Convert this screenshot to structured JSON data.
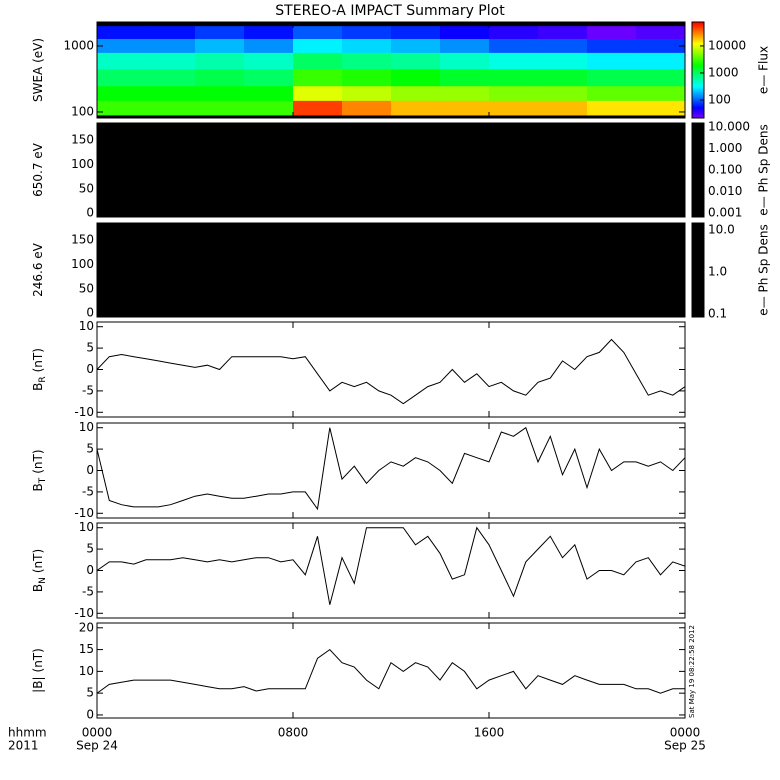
{
  "title": "STEREO-A IMPACT Summary Plot",
  "timestamp": "Sat May 19 08:22:58 2012",
  "x_axis_label": "hhmm",
  "x_axis_year": "2011",
  "chart_data": [
    {
      "type": "heatmap",
      "ylabel": "SWEA (eV)",
      "log_y": true,
      "ylim": [
        81,
        2310
      ],
      "yticks": [
        100,
        1000
      ],
      "xlim": [
        0,
        24
      ],
      "colormap": "rainbow",
      "clim": [
        21.5,
        77000
      ],
      "cticks": [
        100,
        1000,
        10000
      ],
      "clabel": "e— Flux",
      "x_edges": [
        0,
        2,
        4,
        6,
        8,
        10,
        12,
        14,
        16,
        18,
        20,
        22,
        24
      ],
      "y_edges": [
        90,
        150,
        250,
        450,
        800,
        1300,
        2000
      ],
      "values": [
        [
          3000,
          3000,
          3000,
          3000,
          50000,
          30000,
          20000,
          20000,
          20000,
          20000,
          15000,
          15000
        ],
        [
          2000,
          2000,
          2000,
          2000,
          10000,
          8000,
          6000,
          6000,
          5000,
          5000,
          4000,
          4000
        ],
        [
          1000,
          1000,
          1200,
          1000,
          3000,
          2500,
          2000,
          1500,
          1500,
          1500,
          1200,
          1200
        ],
        [
          500,
          500,
          600,
          500,
          1000,
          800,
          700,
          500,
          400,
          400,
          300,
          300
        ],
        [
          150,
          150,
          200,
          150,
          300,
          250,
          200,
          150,
          100,
          100,
          80,
          80
        ],
        [
          60,
          60,
          80,
          60,
          100,
          80,
          70,
          50,
          40,
          35,
          25,
          30
        ]
      ]
    },
    {
      "type": "heatmap",
      "ylabel": "650.7 eV",
      "ylim": [
        -8,
        185
      ],
      "yticks": [
        0,
        50,
        100,
        150
      ],
      "xlim": [
        0,
        24
      ],
      "clim": [
        0.00065,
        15.3
      ],
      "cticks": [
        {
          "value": 10,
          "label": "10.000"
        },
        {
          "value": 1,
          "label": "1.000"
        },
        {
          "value": 0.1,
          "label": "0.100"
        },
        {
          "value": 0.01,
          "label": "0.010"
        },
        {
          "value": 0.001,
          "label": "0.001"
        }
      ],
      "clabel": "e— Ph Sp Dens"
    },
    {
      "type": "heatmap",
      "ylabel": "246.6 eV",
      "ylim": [
        -8,
        185
      ],
      "yticks": [
        0,
        50,
        100,
        150
      ],
      "xlim": [
        0,
        24
      ],
      "clim": [
        0.085,
        14.7
      ],
      "cticks": [
        {
          "value": 10,
          "label": "10.0"
        },
        {
          "value": 1,
          "label": "1.0"
        },
        {
          "value": 0.1,
          "label": "0.1"
        }
      ],
      "clabel": "e— Ph Sp Dens"
    },
    {
      "type": "line",
      "ylabel": "B",
      "ylabel_sub": "R",
      "ylabel_unit": "(nT)",
      "ylim": [
        -11.1,
        11.1
      ],
      "yticks": [
        -10,
        -5,
        0,
        5,
        10
      ],
      "xlim": [
        0,
        24
      ],
      "color": "#000000",
      "x": [
        0,
        0.5,
        1,
        1.5,
        2,
        2.5,
        3,
        3.5,
        4,
        4.5,
        5,
        5.5,
        6,
        6.5,
        7,
        7.5,
        8,
        8.5,
        9,
        9.5,
        10,
        10.5,
        11,
        11.5,
        12,
        12.5,
        13,
        13.5,
        14,
        14.5,
        15,
        15.5,
        16,
        16.5,
        17,
        17.5,
        18,
        18.5,
        19,
        19.5,
        20,
        20.5,
        21,
        21.5,
        22,
        22.5,
        23,
        23.5,
        24
      ],
      "values": [
        0,
        3,
        3.5,
        3,
        2.5,
        2,
        1.5,
        1,
        0.5,
        1,
        0,
        3,
        3,
        3,
        3,
        3,
        2.5,
        3,
        -1,
        -5,
        -3,
        -4,
        -3,
        -5,
        -6,
        -8,
        -6,
        -4,
        -3,
        0,
        -3,
        -1,
        -4,
        -3,
        -5,
        -6,
        -3,
        -2,
        2,
        0,
        3,
        4,
        7,
        4,
        -1,
        -6,
        -5,
        -6,
        -4
      ]
    },
    {
      "type": "line",
      "ylabel": "B",
      "ylabel_sub": "T",
      "ylabel_unit": "(nT)",
      "ylim": [
        -11.1,
        11.1
      ],
      "yticks": [
        -10,
        -5,
        0,
        5,
        10
      ],
      "xlim": [
        0,
        24
      ],
      "color": "#000000",
      "x": [
        0,
        0.5,
        1,
        1.5,
        2,
        2.5,
        3,
        3.5,
        4,
        4.5,
        5,
        5.5,
        6,
        6.5,
        7,
        7.5,
        8,
        8.5,
        9,
        9.5,
        10,
        10.5,
        11,
        11.5,
        12,
        12.5,
        13,
        13.5,
        14,
        14.5,
        15,
        15.5,
        16,
        16.5,
        17,
        17.5,
        18,
        18.5,
        19,
        19.5,
        20,
        20.5,
        21,
        21.5,
        22,
        22.5,
        23,
        23.5,
        24
      ],
      "values": [
        5,
        -7,
        -8,
        -8.5,
        -8.5,
        -8.5,
        -8,
        -7,
        -6,
        -5.5,
        -6,
        -6.5,
        -6.5,
        -6,
        -5.5,
        -5.5,
        -5,
        -5,
        -9,
        10,
        -2,
        1,
        -3,
        0,
        2,
        1,
        3,
        2,
        0,
        -3,
        4,
        3,
        2,
        9,
        8,
        10,
        2,
        8,
        -1,
        5,
        -4,
        5,
        0,
        2,
        2,
        1,
        2,
        0,
        3
      ]
    },
    {
      "type": "line",
      "ylabel": "B",
      "ylabel_sub": "N",
      "ylabel_unit": "(nT)",
      "ylim": [
        -11.1,
        11.1
      ],
      "yticks": [
        -10,
        -5,
        0,
        5,
        10
      ],
      "xlim": [
        0,
        24
      ],
      "color": "#000000",
      "x": [
        0,
        0.5,
        1,
        1.5,
        2,
        2.5,
        3,
        3.5,
        4,
        4.5,
        5,
        5.5,
        6,
        6.5,
        7,
        7.5,
        8,
        8.5,
        9,
        9.5,
        10,
        10.5,
        11,
        11.5,
        12,
        12.5,
        13,
        13.5,
        14,
        14.5,
        15,
        15.5,
        16,
        16.5,
        17,
        17.5,
        18,
        18.5,
        19,
        19.5,
        20,
        20.5,
        21,
        21.5,
        22,
        22.5,
        23,
        23.5,
        24
      ],
      "values": [
        0,
        2,
        2,
        1.5,
        2.5,
        2.5,
        2.5,
        3,
        2.5,
        2,
        2.5,
        2,
        2.5,
        3,
        3,
        2,
        2.5,
        -1,
        8,
        -8,
        3,
        -3,
        10,
        10,
        10,
        10,
        6,
        8,
        4,
        -2,
        -1,
        10,
        6,
        0,
        -6,
        2,
        5,
        8,
        3,
        6,
        -2,
        0,
        0,
        -1,
        2,
        3,
        -1,
        2,
        1
      ]
    },
    {
      "type": "line",
      "ylabel": "|B|",
      "ylabel_unit": "(nT)",
      "ylim": [
        -0.7,
        21.1
      ],
      "yticks": [
        0,
        5,
        10,
        15,
        20
      ],
      "xlim": [
        0,
        24
      ],
      "color": "#000000",
      "xticks": [
        {
          "value": 0,
          "label": "0000"
        },
        {
          "value": 8,
          "label": "0800"
        },
        {
          "value": 16,
          "label": "1600"
        },
        {
          "value": 24,
          "label": "0000"
        }
      ],
      "xdates": [
        {
          "value": 0,
          "label": "Sep 24"
        },
        {
          "value": 24,
          "label": "Sep 25"
        }
      ],
      "x": [
        0,
        0.5,
        1,
        1.5,
        2,
        2.5,
        3,
        3.5,
        4,
        4.5,
        5,
        5.5,
        6,
        6.5,
        7,
        7.5,
        8,
        8.5,
        9,
        9.5,
        10,
        10.5,
        11,
        11.5,
        12,
        12.5,
        13,
        13.5,
        14,
        14.5,
        15,
        15.5,
        16,
        16.5,
        17,
        17.5,
        18,
        18.5,
        19,
        19.5,
        20,
        20.5,
        21,
        21.5,
        22,
        22.5,
        23,
        23.5,
        24
      ],
      "values": [
        5,
        7,
        7.5,
        8,
        8,
        8,
        8,
        7.5,
        7,
        6.5,
        6,
        6,
        6.5,
        5.5,
        6,
        6,
        6,
        6,
        13,
        15,
        12,
        11,
        8,
        6,
        12,
        10,
        12,
        11,
        8,
        12,
        10,
        6,
        8,
        9,
        10,
        6,
        9,
        8,
        7,
        9,
        8,
        7,
        7,
        7,
        6,
        6,
        5,
        6,
        6
      ]
    }
  ]
}
